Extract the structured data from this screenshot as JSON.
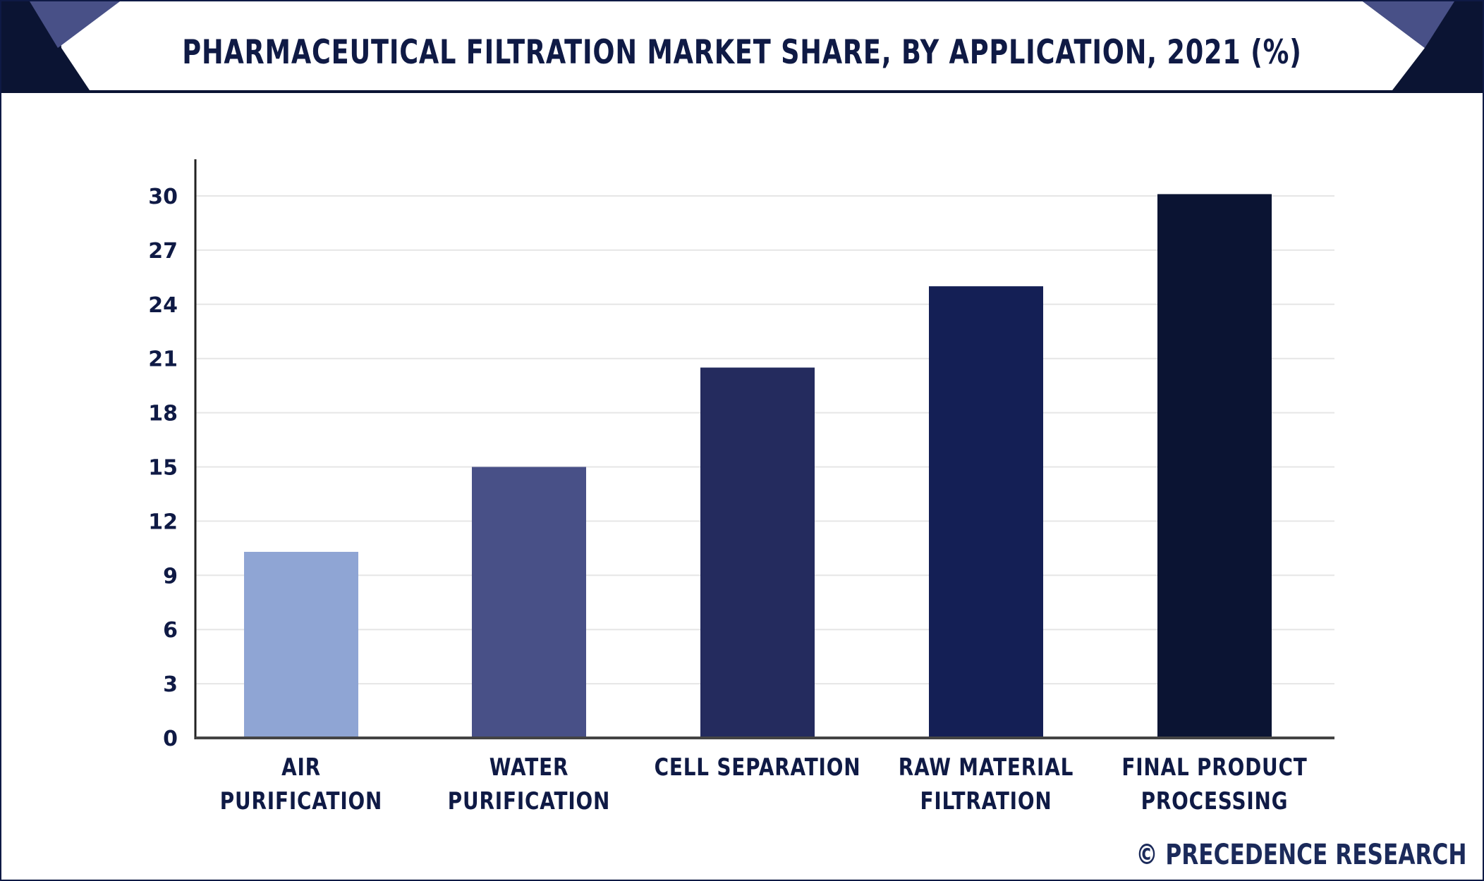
{
  "header": {
    "title": "PHARMACEUTICAL FILTRATION MARKET SHARE, BY APPLICATION, 2021 (%)"
  },
  "footer": {
    "brand": "© PRECEDENCE RESEARCH"
  },
  "chart_data": {
    "type": "bar",
    "title": "PHARMACEUTICAL FILTRATION MARKET SHARE, BY APPLICATION, 2021 (%)",
    "xlabel": "",
    "ylabel": "",
    "categories": [
      [
        "AIR",
        "PURIFICATION"
      ],
      [
        "WATER",
        "PURIFICATION"
      ],
      [
        "CELL SEPARATION"
      ],
      [
        "RAW MATERIAL",
        "FILTRATION"
      ],
      [
        "FINAL PRODUCT",
        "PROCESSING"
      ]
    ],
    "values": [
      10.3,
      15.0,
      20.5,
      25.0,
      30.1
    ],
    "bar_colors": [
      "#8fa5d4",
      "#485087",
      "#242b5e",
      "#141f55",
      "#0b1433"
    ],
    "yticks": [
      0,
      3,
      6,
      9,
      12,
      15,
      18,
      21,
      24,
      27,
      30
    ],
    "ylim": [
      0,
      30
    ],
    "grid": true,
    "legend": "none"
  },
  "colors": {
    "title_text": "#0f1a45",
    "header_dark": "#0b1433",
    "header_accent": "#485087",
    "gridline": "#e6e6e6",
    "axis": "#222222"
  }
}
